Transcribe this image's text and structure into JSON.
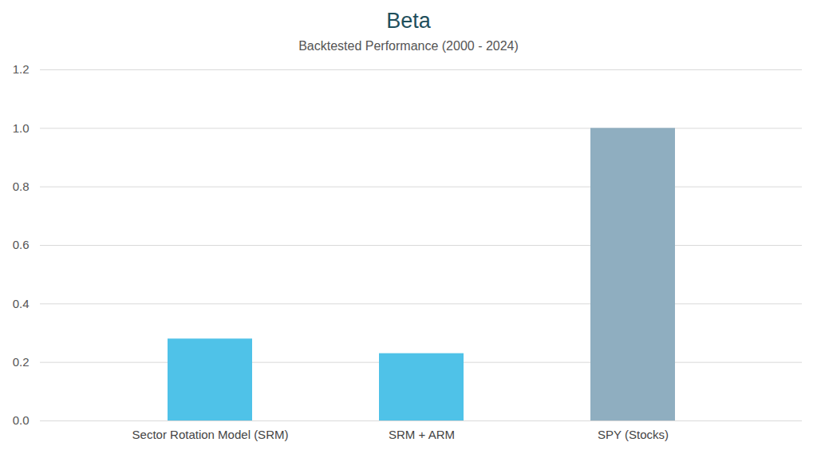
{
  "chart_data": {
    "type": "bar",
    "title": "Beta",
    "subtitle": "Backtested Performance (2000 - 2024)",
    "categories": [
      "Sector Rotation Model (SRM)",
      "SRM + ARM",
      "SPY (Stocks)"
    ],
    "values": [
      0.28,
      0.23,
      1.0
    ],
    "colors": [
      "#4fc2e8",
      "#4fc2e8",
      "#8faec0"
    ],
    "ylim": [
      0,
      1.2
    ],
    "yticks": [
      {
        "value": 0,
        "label": "0.0"
      },
      0.2,
      0.4,
      0.6,
      0.8,
      {
        "value": 1,
        "label": "1.0"
      },
      1.2
    ],
    "grid": true
  }
}
